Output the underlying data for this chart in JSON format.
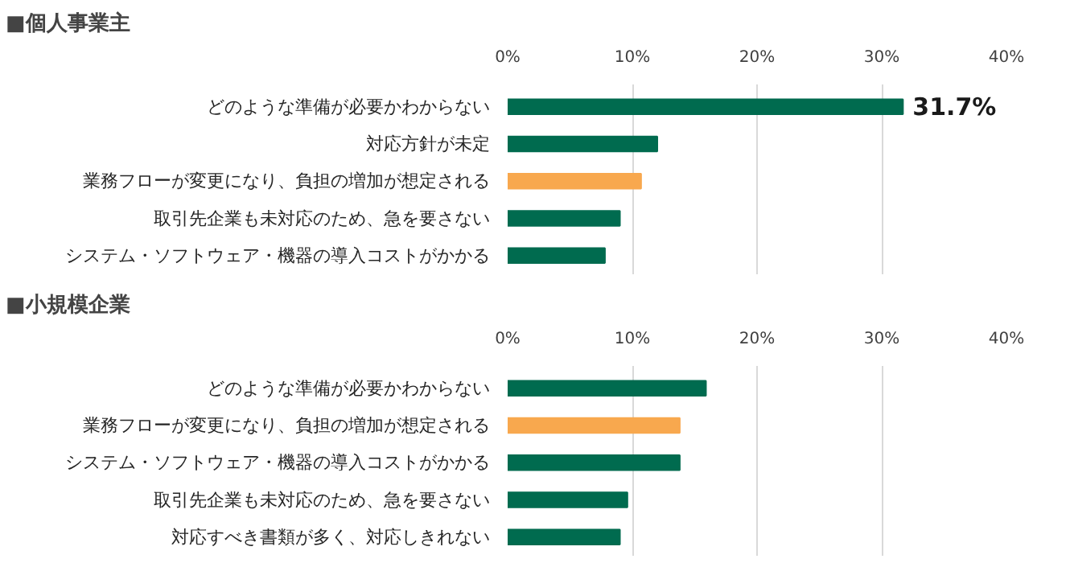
{
  "chart_data": [
    {
      "type": "bar",
      "orientation": "horizontal",
      "title": "■個人事業主",
      "categories": [
        "どのような準備が必要かわからない",
        "対応方針が未定",
        "業務フローが変更になり、負担の増加が想定される",
        "取引先企業も未対応のため、急を要さない",
        "システム・ソフトウェア・機器の導入コストがかかる"
      ],
      "values": [
        31.7,
        12.0,
        10.7,
        9.0,
        7.8
      ],
      "colors": [
        "#006b4f",
        "#006b4f",
        "#f8a84e",
        "#006b4f",
        "#006b4f"
      ],
      "value_labels": [
        "31.7%",
        null,
        null,
        null,
        null
      ],
      "xlim": [
        0,
        40
      ],
      "xticks": [
        {
          "value": 0,
          "label": "0%"
        },
        {
          "value": 10,
          "label": "10%"
        },
        {
          "value": 20,
          "label": "20%"
        },
        {
          "value": 30,
          "label": "30%"
        },
        {
          "value": 40,
          "label": "40%"
        }
      ],
      "grid": "x"
    },
    {
      "type": "bar",
      "orientation": "horizontal",
      "title": "■小規模企業",
      "categories": [
        "どのような準備が必要かわからない",
        "業務フローが変更になり、負担の増加が想定される",
        "システム・ソフトウェア・機器の導入コストがかかる",
        "取引先企業も未対応のため、急を要さない",
        "対応すべき書類が多く、対応しきれない"
      ],
      "values": [
        15.9,
        13.8,
        13.8,
        9.6,
        9.0
      ],
      "colors": [
        "#006b4f",
        "#f8a84e",
        "#006b4f",
        "#006b4f",
        "#006b4f"
      ],
      "xlim": [
        0,
        40
      ],
      "xticks": [
        {
          "value": 0,
          "label": "0%"
        },
        {
          "value": 10,
          "label": "10%"
        },
        {
          "value": 20,
          "label": "20%"
        },
        {
          "value": 30,
          "label": "30%"
        },
        {
          "value": 40,
          "label": "40%"
        }
      ],
      "grid": "x"
    }
  ]
}
